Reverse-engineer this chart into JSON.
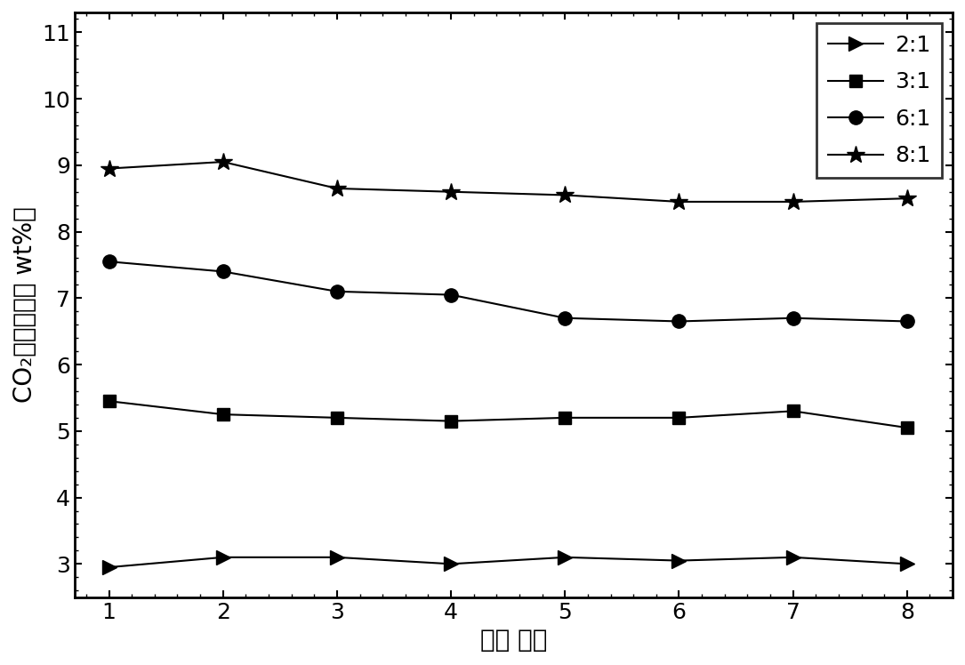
{
  "x": [
    1,
    2,
    3,
    4,
    5,
    6,
    7,
    8
  ],
  "series_order": [
    "2:1",
    "3:1",
    "6:1",
    "8:1"
  ],
  "series": {
    "2:1": {
      "y": [
        2.95,
        3.1,
        3.1,
        3.0,
        3.1,
        3.05,
        3.1,
        3.0
      ],
      "marker": ">",
      "markersize": 11,
      "label": "2:1"
    },
    "3:1": {
      "y": [
        5.45,
        5.25,
        5.2,
        5.15,
        5.2,
        5.2,
        5.3,
        5.05
      ],
      "marker": "s",
      "markersize": 10,
      "label": "3:1"
    },
    "6:1": {
      "y": [
        7.55,
        7.4,
        7.1,
        7.05,
        6.7,
        6.65,
        6.7,
        6.65
      ],
      "marker": "o",
      "markersize": 11,
      "label": "6:1"
    },
    "8:1": {
      "y": [
        8.95,
        9.05,
        8.65,
        8.6,
        8.55,
        8.45,
        8.45,
        8.5
      ],
      "marker": "*",
      "markersize": 15,
      "label": "8:1"
    }
  },
  "xlim": [
    0.7,
    8.4
  ],
  "ylim": [
    2.5,
    11.3
  ],
  "xticks": [
    1,
    2,
    3,
    4,
    5,
    6,
    7,
    8
  ],
  "yticks": [
    3,
    4,
    5,
    6,
    7,
    8,
    9,
    10,
    11
  ],
  "xlabel": "循环 次数",
  "ylabel_line1": "CO₂吸附容量（ wt%）",
  "linecolor": "#000000",
  "linewidth": 1.5,
  "background_color": "#ffffff",
  "legend_fontsize": 18,
  "tick_fontsize": 18,
  "label_fontsize": 20,
  "spine_linewidth": 2.0
}
